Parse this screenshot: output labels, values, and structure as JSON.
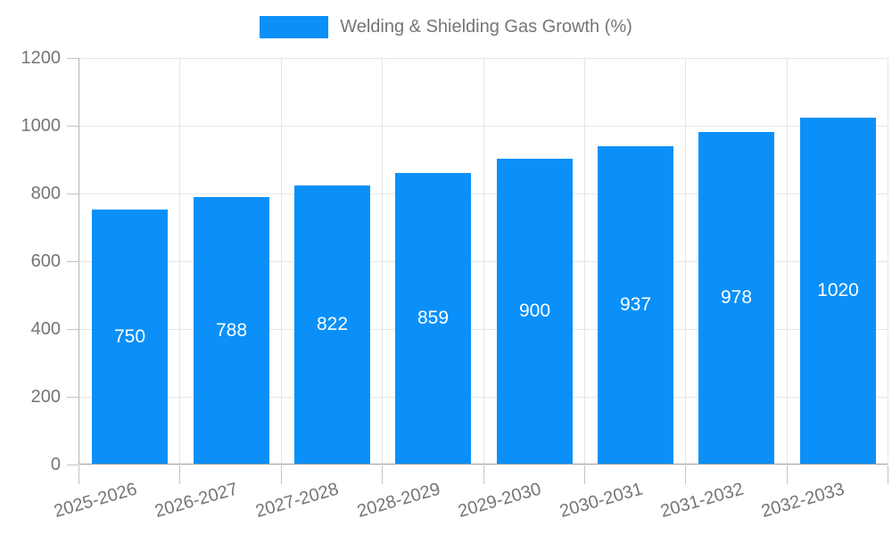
{
  "chart_data": {
    "type": "bar",
    "title": "Welding & Shielding Gas Growth (%)",
    "legend_entries": [
      "Welding & Shielding Gas Growth (%)"
    ],
    "legend_position": "top-center",
    "categories": [
      "2025-2026",
      "2026-2027",
      "2027-2028",
      "2028-2029",
      "2029-2030",
      "2030-2031",
      "2031-2032",
      "2032-2033"
    ],
    "values": [
      750,
      788,
      822,
      859,
      900,
      937,
      978,
      1020
    ],
    "xlabel": "",
    "ylabel": "",
    "ylim": [
      0,
      1200
    ],
    "yticks": [
      0,
      200,
      400,
      600,
      800,
      1000,
      1200
    ],
    "grid": true,
    "x_labels_rotated": true,
    "bar_value_labels_inside": true,
    "colors": {
      "bar": "#0a90f8",
      "bar_label_text": "#ffffff",
      "axis_text": "#757575",
      "legend_text": "#757575",
      "gridline": "#e6e6e6",
      "x_axis_line": "#9a9a9a",
      "y_axis_line": "#b3b3b3",
      "tick": "#c4c4c4",
      "background": "#ffffff"
    }
  }
}
